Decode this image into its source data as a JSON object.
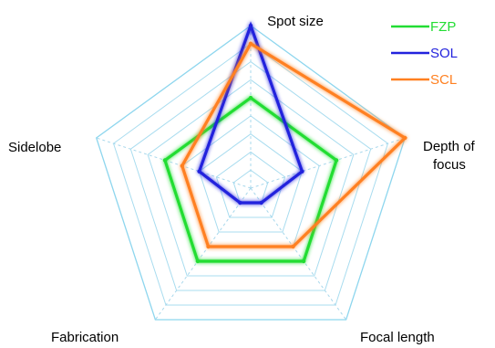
{
  "chart_data": {
    "type": "radar",
    "title": "",
    "axes": [
      "Spot size",
      "Depth of focus",
      "Focal length",
      "Fabrication",
      "Sidelobe"
    ],
    "axis_label_lines": [
      [
        "Spot size"
      ],
      [
        "Depth of",
        "focus"
      ],
      [
        "Focal length"
      ],
      [
        "Fabrication"
      ],
      [
        "Sidelobe"
      ]
    ],
    "rlim": [
      0,
      9
    ],
    "grid_levels": 9,
    "grid": true,
    "legend_position": "top-right",
    "series": [
      {
        "name": "FZP",
        "color": "#22dd33",
        "values": [
          5,
          5,
          5,
          5,
          5
        ]
      },
      {
        "name": "SOL",
        "color": "#2222dd",
        "values": [
          9,
          3,
          1,
          1,
          3
        ]
      },
      {
        "name": "SCL",
        "color": "#ff8020",
        "values": [
          8,
          9,
          4,
          4,
          4
        ]
      }
    ],
    "colors": {
      "grid_outer": "#8ed6ee",
      "grid_inner": "#a8dcef",
      "spoke": "#a8d8ec"
    }
  }
}
